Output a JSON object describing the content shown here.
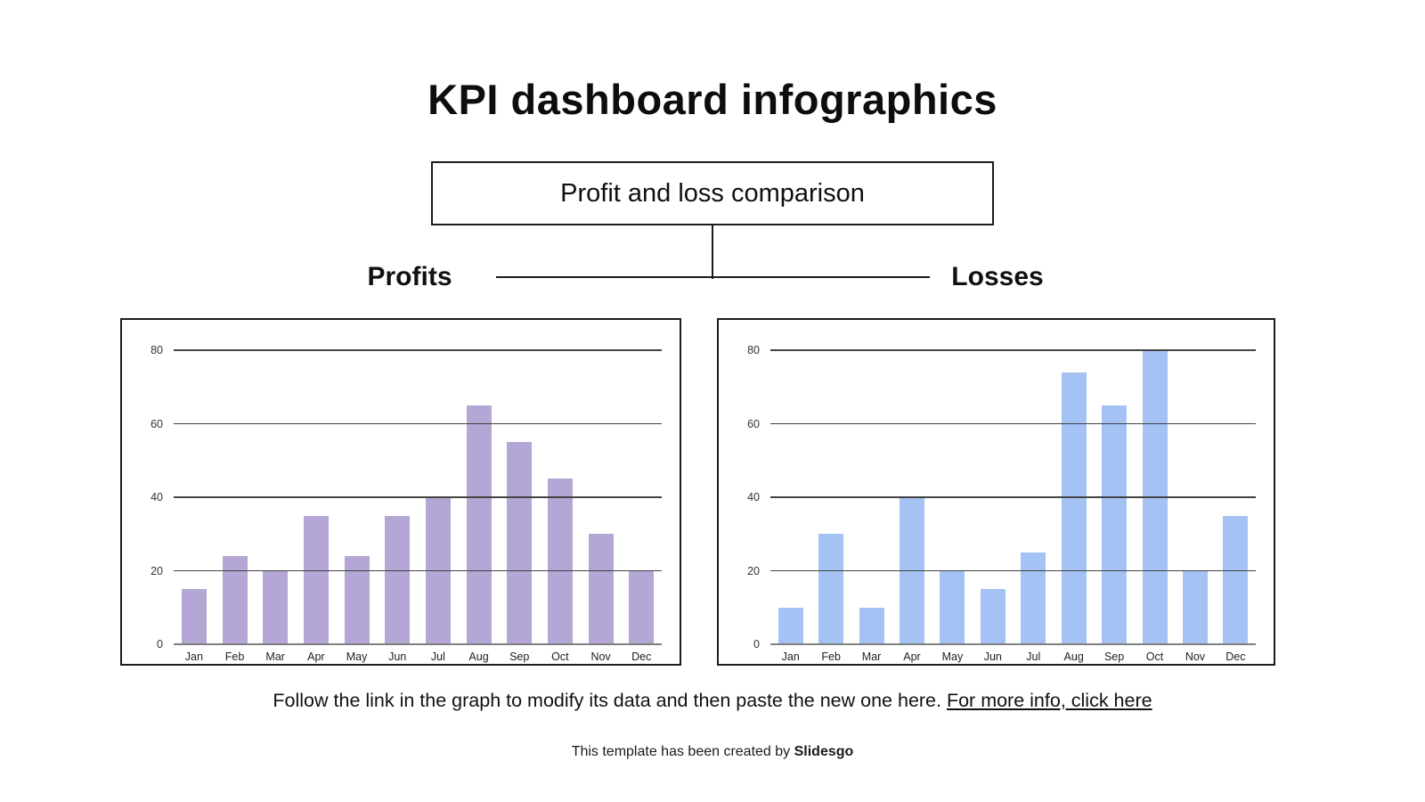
{
  "page": {
    "title": "KPI dashboard infographics",
    "subtitle_box": "Profit and loss comparison",
    "footer": {
      "text": "Follow the link in the graph to modify its data and then paste the new one here. ",
      "link": "For more info, click here"
    },
    "credit": {
      "prefix": "This template has been created by ",
      "brand": "Slidesgo"
    }
  },
  "colors": {
    "profits_bar": "#b4a7d6",
    "losses_bar": "#a4c2f4",
    "gridline": "#434343",
    "baseline": "#7f7f7f",
    "axis_text": "#333333",
    "connector": "#1b1b1b"
  },
  "chart_data": [
    {
      "type": "bar",
      "title": "Profits",
      "categories": [
        "Jan",
        "Feb",
        "Mar",
        "Apr",
        "May",
        "Jun",
        "Jul",
        "Aug",
        "Sep",
        "Oct",
        "Nov",
        "Dec"
      ],
      "values": [
        15,
        24,
        20,
        35,
        24,
        35,
        40,
        65,
        55,
        45,
        30,
        20
      ],
      "xlabel": "",
      "ylabel": "",
      "ylim": [
        0,
        80
      ],
      "yticks": [
        0,
        20,
        40,
        60,
        80
      ],
      "bar_color": "#b4a7d6",
      "grid": true,
      "legend": "none"
    },
    {
      "type": "bar",
      "title": "Losses",
      "categories": [
        "Jan",
        "Feb",
        "Mar",
        "Apr",
        "May",
        "Jun",
        "Jul",
        "Aug",
        "Sep",
        "Oct",
        "Nov",
        "Dec"
      ],
      "values": [
        10,
        30,
        10,
        40,
        20,
        15,
        25,
        74,
        65,
        80,
        20,
        35
      ],
      "xlabel": "",
      "ylabel": "",
      "ylim": [
        0,
        80
      ],
      "yticks": [
        0,
        20,
        40,
        60,
        80
      ],
      "bar_color": "#a4c2f4",
      "grid": true,
      "legend": "none"
    }
  ]
}
